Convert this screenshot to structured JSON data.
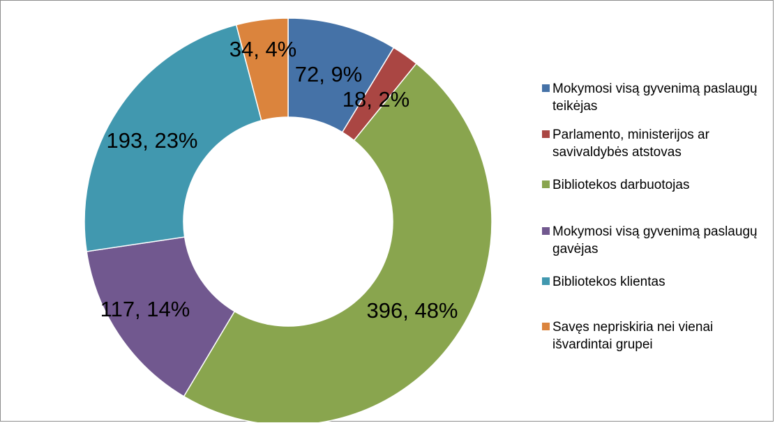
{
  "chart_data": {
    "type": "pie",
    "title": "",
    "hole": "donut",
    "start_angle_deg": 0,
    "legend_placement": "right",
    "slices": [
      {
        "name": "Mokymosi visą gyvenimą paslaugų teikėjas",
        "value": 72,
        "percent": "9%",
        "label": "72, 9%",
        "color": "#4572A7"
      },
      {
        "name": "Parlamento, ministerijos ar savivaldybės atstovas",
        "value": 18,
        "percent": "2%",
        "label": "18, 2%",
        "color": "#AA4643"
      },
      {
        "name": "Bibliotekos darbuotojas",
        "value": 396,
        "percent": "48%",
        "label": "396, 48%",
        "color": "#89A54E"
      },
      {
        "name": "Mokymosi visą gyvenimą paslaugų gavėjas",
        "value": 117,
        "percent": "14%",
        "label": "117, 14%",
        "color": "#71588F"
      },
      {
        "name": "Bibliotekos klientas",
        "value": 193,
        "percent": "23%",
        "label": "193, 23%",
        "color": "#4198AF"
      },
      {
        "name": "Savęs nepriskiria nei vienai išvardintai grupei",
        "value": 34,
        "percent": "4%",
        "label": "34, 4%",
        "color": "#DB843D"
      }
    ]
  }
}
